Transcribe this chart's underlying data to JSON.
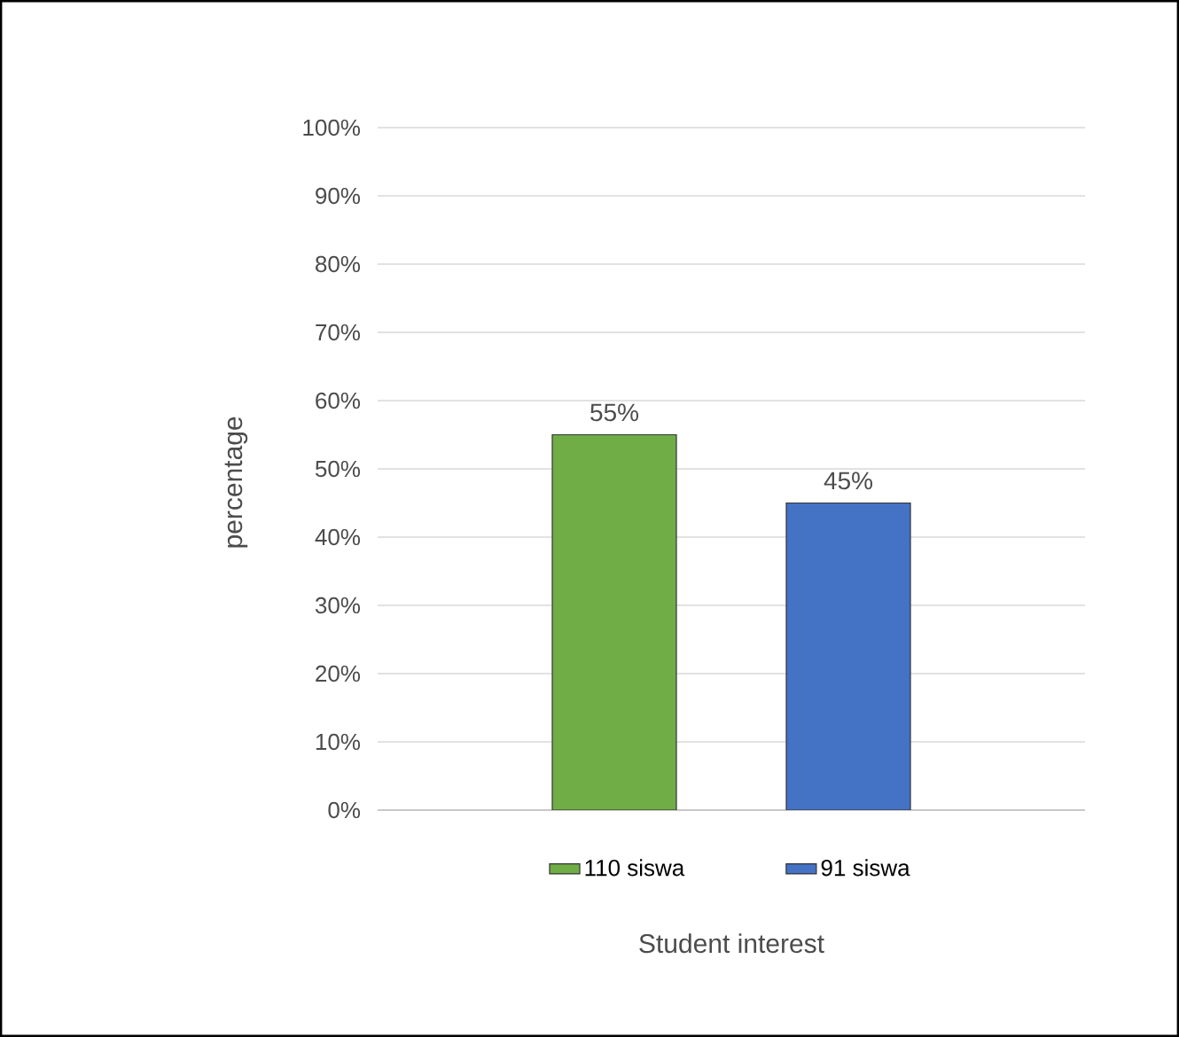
{
  "chart_data": {
    "type": "bar",
    "xlabel": "Student interest",
    "ylabel": "percentage",
    "categories": [
      null
    ],
    "series": [
      {
        "name": "110 siswa",
        "color": "#70ad47",
        "values": [
          55
        ],
        "value_labels": [
          "55%"
        ]
      },
      {
        "name": "91 siswa",
        "color": "#4472c4",
        "values": [
          45
        ],
        "value_labels": [
          "45%"
        ]
      }
    ],
    "ylim": [
      0,
      100
    ],
    "yticks": [
      {
        "value": 0,
        "label": "0%"
      },
      {
        "value": 10,
        "label": "10%"
      },
      {
        "value": 20,
        "label": "20%"
      },
      {
        "value": 30,
        "label": "30%"
      },
      {
        "value": 40,
        "label": "40%"
      },
      {
        "value": 50,
        "label": "50%"
      },
      {
        "value": 60,
        "label": "60%"
      },
      {
        "value": 70,
        "label": "70%"
      },
      {
        "value": 80,
        "label": "80%"
      },
      {
        "value": 90,
        "label": "90%"
      },
      {
        "value": 100,
        "label": "100%"
      }
    ],
    "grid": "y",
    "legend": "bottom"
  }
}
